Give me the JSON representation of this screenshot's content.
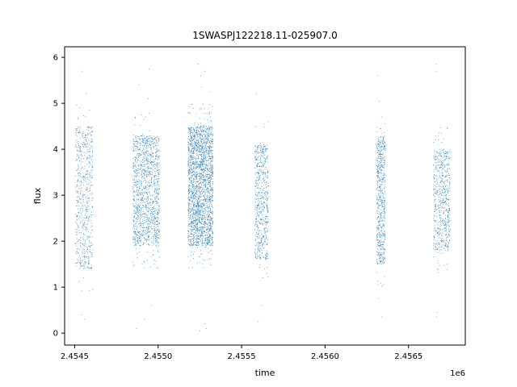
{
  "chart_data": {
    "type": "scatter",
    "title": "1SWASPJ122218.11-025907.0",
    "xlabel": "time",
    "ylabel": "flux",
    "x_offset_label": "1e6",
    "xlim": [
      2454440,
      2456840
    ],
    "ylim": [
      -0.26,
      6.23
    ],
    "x_ticks": [
      2454500,
      2455000,
      2455500,
      2456000,
      2456500
    ],
    "x_tick_labels": [
      "2.4545",
      "2.4550",
      "2.4555",
      "2.4560",
      "2.4565"
    ],
    "y_ticks": [
      0,
      1,
      2,
      3,
      4,
      5,
      6
    ],
    "y_tick_labels": [
      "0",
      "1",
      "2",
      "3",
      "4",
      "5",
      "6"
    ],
    "grid": false,
    "legend": "none",
    "marker_color": "#1f77b4",
    "seasons": [
      {
        "start": 2454505,
        "end": 2454610,
        "low": 1.4,
        "high": 4.5,
        "count": 600
      },
      {
        "start": 2454850,
        "end": 2455010,
        "low": 1.9,
        "high": 4.3,
        "count": 1300
      },
      {
        "start": 2455180,
        "end": 2455330,
        "low": 1.9,
        "high": 4.5,
        "count": 2200
      },
      {
        "start": 2455580,
        "end": 2455660,
        "low": 1.6,
        "high": 4.1,
        "count": 600
      },
      {
        "start": 2456310,
        "end": 2456360,
        "low": 1.5,
        "high": 4.3,
        "count": 600
      },
      {
        "start": 2456650,
        "end": 2456750,
        "low": 1.8,
        "high": 4.0,
        "count": 600
      }
    ],
    "outliers": [
      [
        2454530,
        4.9
      ],
      [
        2454545,
        5.7
      ],
      [
        2454570,
        5.2
      ],
      [
        2454540,
        0.4
      ],
      [
        2454560,
        0.3
      ],
      [
        2454885,
        5.4
      ],
      [
        2454925,
        4.7
      ],
      [
        2454940,
        5.1
      ],
      [
        2454945,
        5.75
      ],
      [
        2454870,
        0.1
      ],
      [
        2454920,
        0.3
      ],
      [
        2454960,
        0.6
      ],
      [
        2455240,
        5.85
      ],
      [
        2455255,
        5.6
      ],
      [
        2455280,
        5.7
      ],
      [
        2455310,
        5.25
      ],
      [
        2455260,
        5.35
      ],
      [
        2455250,
        0.05
      ],
      [
        2455280,
        0.2
      ],
      [
        2455290,
        0.1
      ],
      [
        2455590,
        5.2
      ],
      [
        2455600,
        0.25
      ],
      [
        2455620,
        0.6
      ],
      [
        2456315,
        5.6
      ],
      [
        2456325,
        5.05
      ],
      [
        2456320,
        0.75
      ],
      [
        2456340,
        0.35
      ],
      [
        2456665,
        5.85
      ],
      [
        2456665,
        5.7
      ],
      [
        2456670,
        0.45
      ],
      [
        2456668,
        0.35
      ],
      [
        2456680,
        4.2
      ],
      [
        2456700,
        4.15
      ]
    ]
  }
}
